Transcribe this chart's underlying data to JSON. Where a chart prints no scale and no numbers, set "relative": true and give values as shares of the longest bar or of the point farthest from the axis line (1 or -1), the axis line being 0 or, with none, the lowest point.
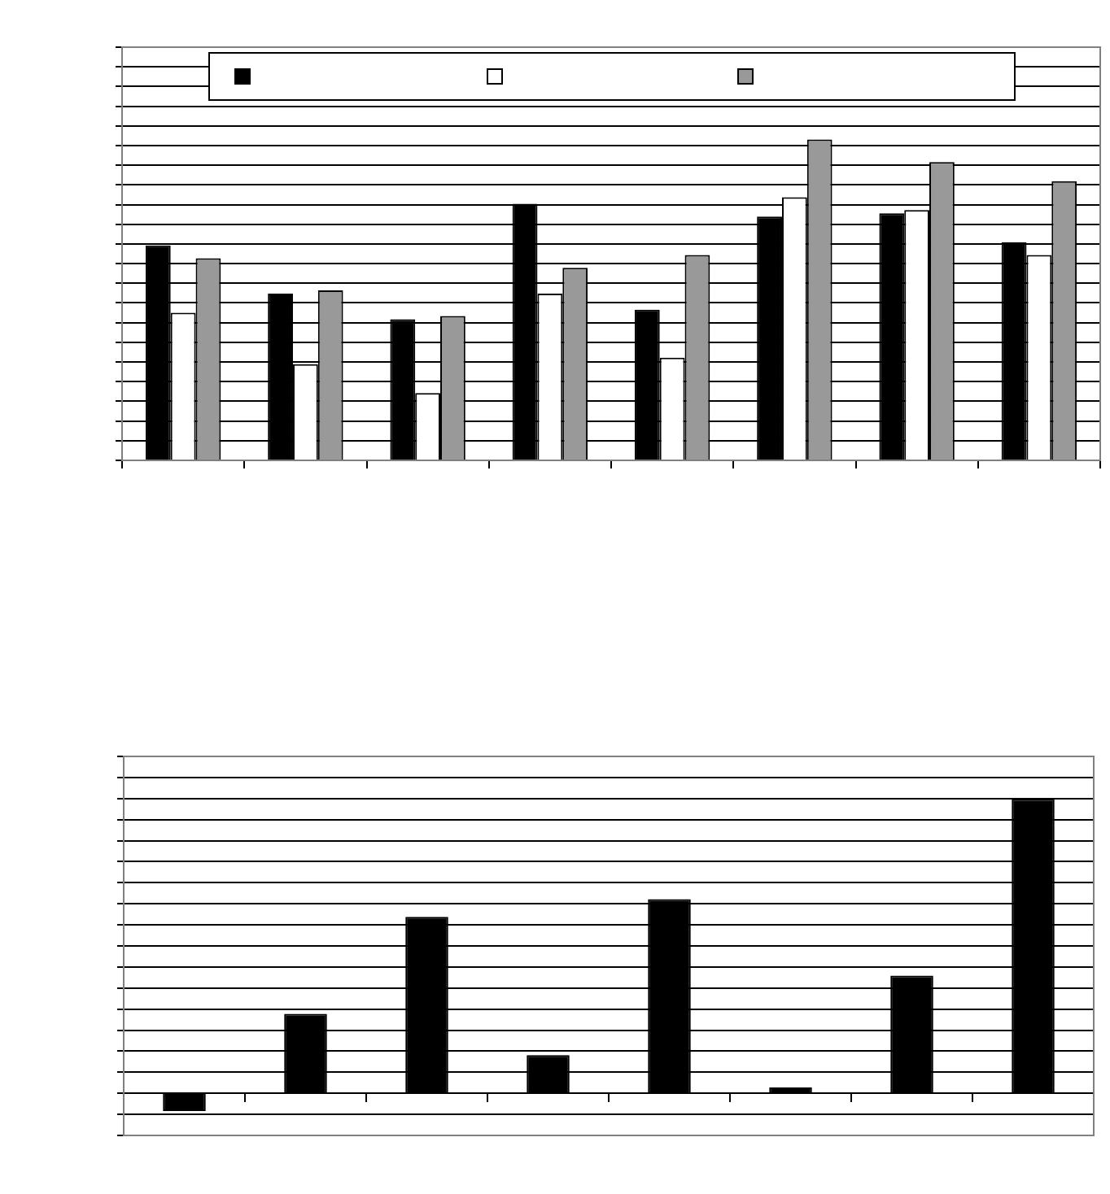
{
  "chart_data": [
    {
      "type": "bar",
      "relative": true,
      "categories": [
        null,
        null,
        null,
        null,
        null,
        null,
        null,
        null
      ],
      "series": [
        {
          "color": "#000000",
          "values": [
            0.67,
            0.52,
            0.44,
            0.8,
            0.47,
            0.76,
            0.77,
            0.68
          ]
        },
        {
          "color": "#ffffff",
          "values": [
            0.46,
            0.3,
            0.21,
            0.52,
            0.32,
            0.82,
            0.78,
            0.64
          ]
        },
        {
          "color": "#999999",
          "values": [
            0.63,
            0.53,
            0.45,
            0.6,
            0.64,
            1,
            0.93,
            0.87
          ]
        }
      ],
      "grid": "y"
    },
    {
      "type": "bar",
      "relative": true,
      "categories": [
        null,
        null,
        null,
        null,
        null,
        null,
        null,
        null
      ],
      "color": "#000000",
      "values": [
        -0.06,
        0.27,
        0.6,
        0.13,
        0.66,
        0.02,
        0.4,
        1
      ],
      "grid": "y"
    }
  ]
}
